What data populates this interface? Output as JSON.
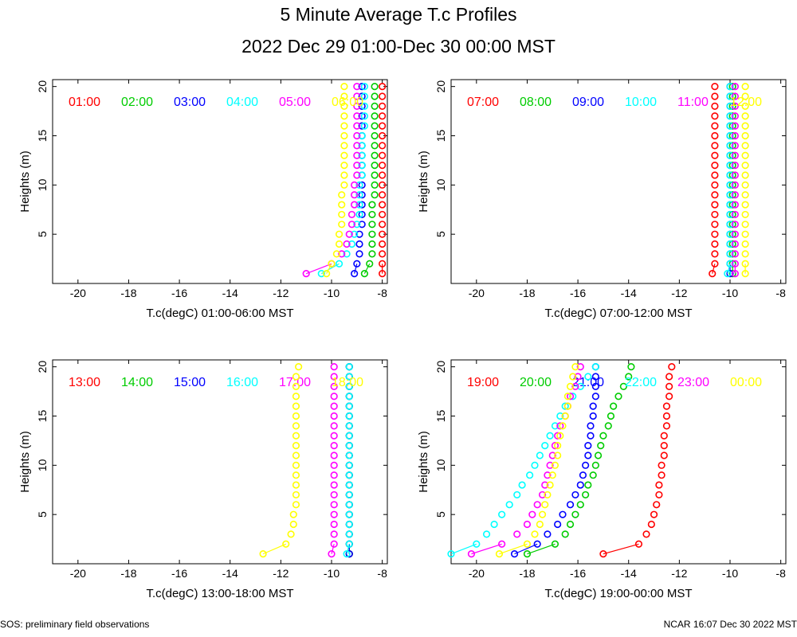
{
  "title": "5 Minute Average T.c Profiles",
  "subtitle": "2022 Dec 29 01:00-Dec 30 00:00 MST",
  "footer_left": "SOS: preliminary field observations",
  "footer_right": "NCAR 16:07 Dec 30 2022 MST",
  "heights_m": [
    1,
    2,
    3,
    4,
    5,
    6,
    7,
    8,
    9,
    10,
    11,
    12,
    13,
    14,
    15,
    16,
    17,
    18,
    19,
    20
  ],
  "chart_data": [
    {
      "type": "scatter",
      "xlabel": "T.c(degC) 01:00-06:00 MST",
      "ylabel": "Heights (m)",
      "xlim": [
        -21,
        -7.8
      ],
      "ylim": [
        0,
        20.7
      ],
      "xticks": [
        -20,
        -18,
        -16,
        -14,
        -12,
        -10,
        -8
      ],
      "yticks": [
        5,
        10,
        15,
        20
      ],
      "series": [
        {
          "name": "01:00",
          "color": "#ff0000",
          "values": [
            -8.0,
            -8.0,
            -8.0,
            -8.0,
            -8.0,
            -8.0,
            -8.0,
            -8.0,
            -8.0,
            -8.0,
            -8.0,
            -8.0,
            -8.0,
            -8.0,
            -8.0,
            -8.0,
            -8.0,
            -8.0,
            -8.0,
            -8.0
          ]
        },
        {
          "name": "02:00",
          "color": "#00cc00",
          "values": [
            -8.7,
            -8.5,
            -8.4,
            -8.4,
            -8.4,
            -8.4,
            -8.4,
            -8.4,
            -8.3,
            -8.3,
            -8.3,
            -8.3,
            -8.3,
            -8.3,
            -8.3,
            -8.3,
            -8.3,
            -8.3,
            -8.3,
            -8.3
          ]
        },
        {
          "name": "03:00",
          "color": "#0000ff",
          "values": [
            -9.1,
            -9.0,
            -8.9,
            -8.9,
            -8.9,
            -8.8,
            -8.8,
            -8.8,
            -8.8,
            -8.8,
            -8.8,
            -8.8,
            -8.8,
            -8.8,
            -8.8,
            -8.8,
            -8.8,
            -8.8,
            -8.8,
            -8.8
          ]
        },
        {
          "name": "04:00",
          "color": "#00ffff",
          "values": [
            -10.4,
            -9.7,
            -9.4,
            -9.2,
            -9.1,
            -9.0,
            -8.9,
            -8.9,
            -8.9,
            -8.9,
            -8.8,
            -8.8,
            -8.8,
            -8.8,
            -8.8,
            -8.7,
            -8.7,
            -8.7,
            -8.7,
            -8.7
          ]
        },
        {
          "name": "05:00",
          "color": "#ff00ff",
          "values": [
            -11.0,
            -10.0,
            -9.6,
            -9.4,
            -9.3,
            -9.2,
            -9.2,
            -9.1,
            -9.1,
            -9.1,
            -9.0,
            -9.0,
            -9.0,
            -9.0,
            -9.0,
            -9.0,
            -9.0,
            -9.0,
            -9.0,
            -9.0
          ]
        },
        {
          "name": "06:00",
          "color": "#ffff00",
          "values": [
            -10.2,
            -10.0,
            -9.8,
            -9.7,
            -9.7,
            -9.6,
            -9.6,
            -9.6,
            -9.6,
            -9.5,
            -9.5,
            -9.5,
            -9.5,
            -9.5,
            -9.5,
            -9.5,
            -9.5,
            -9.5,
            -9.5,
            -9.5
          ]
        }
      ]
    },
    {
      "type": "scatter",
      "xlabel": "T.c(degC) 07:00-12:00 MST",
      "ylabel": "Heights (m)",
      "xlim": [
        -21,
        -7.8
      ],
      "ylim": [
        0,
        20.7
      ],
      "xticks": [
        -20,
        -18,
        -16,
        -14,
        -12,
        -10,
        -8
      ],
      "yticks": [
        5,
        10,
        15,
        20
      ],
      "series": [
        {
          "name": "07:00",
          "color": "#ff0000",
          "values": [
            -10.7,
            -10.6,
            -10.6,
            -10.6,
            -10.6,
            -10.6,
            -10.6,
            -10.6,
            -10.6,
            -10.6,
            -10.6,
            -10.6,
            -10.6,
            -10.6,
            -10.6,
            -10.6,
            -10.6,
            -10.6,
            -10.6,
            -10.6
          ]
        },
        {
          "name": "08:00",
          "color": "#00cc00",
          "values": [
            -9.9,
            -9.9,
            -9.9,
            -9.9,
            -9.9,
            -9.9,
            -9.9,
            -9.9,
            -9.9,
            -9.9,
            -9.9,
            -9.9,
            -9.9,
            -9.9,
            -9.9,
            -9.9,
            -9.9,
            -9.9,
            -9.9,
            -9.9
          ]
        },
        {
          "name": "09:00",
          "color": "#0000ff",
          "values": [
            -10.0,
            -10.0,
            -10.0,
            -10.0,
            -10.0,
            -10.0,
            -10.0,
            -10.0,
            -10.0,
            -10.0,
            -10.0,
            -10.0,
            -10.0,
            -10.0,
            -10.0,
            -10.0,
            -10.0,
            -10.0,
            -10.0,
            -10.0
          ]
        },
        {
          "name": "10:00",
          "color": "#00ffff",
          "values": [
            -10.1,
            -10.0,
            -10.0,
            -10.0,
            -10.0,
            -10.0,
            -10.0,
            -10.0,
            -10.0,
            -10.0,
            -10.0,
            -10.0,
            -10.0,
            -10.0,
            -10.0,
            -10.0,
            -10.0,
            -10.0,
            -10.0,
            -10.0
          ]
        },
        {
          "name": "11:00",
          "color": "#ff00ff",
          "values": [
            -9.8,
            -9.8,
            -9.8,
            -9.8,
            -9.8,
            -9.8,
            -9.8,
            -9.8,
            -9.8,
            -9.8,
            -9.8,
            -9.8,
            -9.8,
            -9.8,
            -9.8,
            -9.8,
            -9.8,
            -9.8,
            -9.8,
            -9.8
          ]
        },
        {
          "name": "12:00",
          "color": "#ffff00",
          "values": [
            -9.4,
            -9.4,
            -9.4,
            -9.4,
            -9.4,
            -9.4,
            -9.4,
            -9.4,
            -9.4,
            -9.4,
            -9.4,
            -9.4,
            -9.4,
            -9.4,
            -9.4,
            -9.4,
            -9.4,
            -9.4,
            -9.4,
            -9.4
          ]
        }
      ]
    },
    {
      "type": "scatter",
      "xlabel": "T.c(degC) 13:00-18:00 MST",
      "ylabel": "Heights (m)",
      "xlim": [
        -21,
        -7.8
      ],
      "ylim": [
        0,
        20.7
      ],
      "xticks": [
        -20,
        -18,
        -16,
        -14,
        -12,
        -10,
        -8
      ],
      "yticks": [
        5,
        10,
        15,
        20
      ],
      "series": [
        {
          "name": "13:00",
          "color": "#ff0000",
          "values": [
            -9.3,
            -9.3,
            -9.3,
            -9.3,
            -9.3,
            -9.3,
            -9.3,
            -9.3,
            -9.3,
            -9.3,
            -9.3,
            -9.3,
            -9.3,
            -9.3,
            -9.3,
            -9.3,
            -9.3,
            -9.3,
            -9.3,
            -9.3
          ]
        },
        {
          "name": "14:00",
          "color": "#00cc00",
          "values": [
            -9.3,
            -9.3,
            -9.3,
            -9.3,
            -9.3,
            -9.3,
            -9.3,
            -9.3,
            -9.3,
            -9.3,
            -9.3,
            -9.3,
            -9.3,
            -9.3,
            -9.3,
            -9.3,
            -9.3,
            -9.3,
            -9.3,
            -9.3
          ]
        },
        {
          "name": "15:00",
          "color": "#0000ff",
          "values": [
            -9.3,
            -9.3,
            -9.3,
            -9.3,
            -9.3,
            -9.3,
            -9.3,
            -9.3,
            -9.3,
            -9.3,
            -9.3,
            -9.3,
            -9.3,
            -9.3,
            -9.3,
            -9.3,
            -9.3,
            -9.3,
            -9.3,
            -9.3
          ]
        },
        {
          "name": "16:00",
          "color": "#00ffff",
          "values": [
            -9.4,
            -9.3,
            -9.3,
            -9.3,
            -9.3,
            -9.3,
            -9.3,
            -9.3,
            -9.3,
            -9.3,
            -9.3,
            -9.3,
            -9.3,
            -9.3,
            -9.3,
            -9.3,
            -9.3,
            -9.3,
            -9.3,
            -9.3
          ]
        },
        {
          "name": "17:00",
          "color": "#ff00ff",
          "values": [
            -10.0,
            -9.9,
            -9.9,
            -9.9,
            -9.9,
            -9.9,
            -9.9,
            -9.9,
            -9.9,
            -9.9,
            -9.9,
            -9.9,
            -9.9,
            -9.9,
            -9.9,
            -9.9,
            -9.9,
            -9.9,
            -9.9,
            -9.9
          ]
        },
        {
          "name": "18:00",
          "color": "#ffff00",
          "values": [
            -12.7,
            -11.8,
            -11.6,
            -11.5,
            -11.5,
            -11.4,
            -11.4,
            -11.4,
            -11.4,
            -11.4,
            -11.4,
            -11.4,
            -11.4,
            -11.4,
            -11.4,
            -11.4,
            -11.4,
            -11.4,
            -11.4,
            -11.3
          ]
        }
      ]
    },
    {
      "type": "scatter",
      "xlabel": "T.c(degC) 19:00-00:00 MST",
      "ylabel": "Heights (m)",
      "xlim": [
        -21,
        -7.8
      ],
      "ylim": [
        0,
        20.7
      ],
      "xticks": [
        -20,
        -18,
        -16,
        -14,
        -12,
        -10,
        -8
      ],
      "yticks": [
        5,
        10,
        15,
        20
      ],
      "series": [
        {
          "name": "19:00",
          "color": "#ff0000",
          "values": [
            -15.0,
            -13.6,
            -13.3,
            -13.1,
            -13.0,
            -12.9,
            -12.8,
            -12.8,
            -12.7,
            -12.7,
            -12.6,
            -12.6,
            -12.6,
            -12.5,
            -12.5,
            -12.5,
            -12.4,
            -12.4,
            -12.4,
            -12.3
          ]
        },
        {
          "name": "20:00",
          "color": "#00cc00",
          "values": [
            -18.0,
            -16.9,
            -16.5,
            -16.3,
            -16.1,
            -15.9,
            -15.7,
            -15.6,
            -15.4,
            -15.3,
            -15.2,
            -15.1,
            -15.0,
            -14.8,
            -14.7,
            -14.6,
            -14.4,
            -14.2,
            -14.0,
            -13.9
          ]
        },
        {
          "name": "21:00",
          "color": "#0000ff",
          "values": [
            -18.5,
            -17.6,
            -17.2,
            -16.8,
            -16.6,
            -16.3,
            -16.1,
            -15.9,
            -15.8,
            -15.7,
            -15.6,
            -15.6,
            -15.5,
            -15.5,
            -15.4,
            -15.4,
            -15.3,
            -15.3,
            -15.3,
            -15.3
          ]
        },
        {
          "name": "22:00",
          "color": "#00ffff",
          "values": [
            -21.0,
            -20.0,
            -19.6,
            -19.3,
            -19.0,
            -18.7,
            -18.4,
            -18.2,
            -17.9,
            -17.7,
            -17.5,
            -17.3,
            -17.1,
            -16.9,
            -16.7,
            -16.5,
            -16.2,
            -15.9,
            -15.6,
            -15.3
          ]
        },
        {
          "name": "23:00",
          "color": "#ff00ff",
          "values": [
            -20.2,
            -19.0,
            -18.4,
            -18.0,
            -17.8,
            -17.6,
            -17.4,
            -17.3,
            -17.2,
            -17.1,
            -17.0,
            -16.9,
            -16.8,
            -16.7,
            -16.5,
            -16.4,
            -16.3,
            -16.1,
            -16.0,
            -15.9
          ]
        },
        {
          "name": "00:00",
          "color": "#ffff00",
          "values": [
            -19.1,
            -18.0,
            -17.7,
            -17.5,
            -17.4,
            -17.3,
            -17.2,
            -17.1,
            -17.0,
            -16.9,
            -16.8,
            -16.8,
            -16.7,
            -16.6,
            -16.5,
            -16.4,
            -16.4,
            -16.3,
            -16.2,
            -16.1
          ]
        }
      ]
    }
  ]
}
